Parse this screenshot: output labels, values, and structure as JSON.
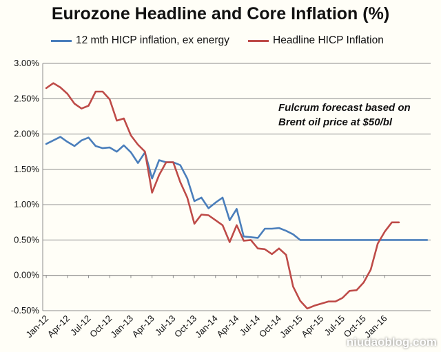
{
  "chart_data": {
    "type": "line",
    "title": "Eurozone Headline and Core Inflation (%)",
    "xlabel": "",
    "ylabel": "",
    "ylim": [
      -0.5,
      3.0
    ],
    "y_ticks": [
      "3.00%",
      "2.50%",
      "2.00%",
      "1.50%",
      "1.00%",
      "0.50%",
      "0.00%",
      "-0.50%"
    ],
    "y_tick_values": [
      3.0,
      2.5,
      2.0,
      1.5,
      1.0,
      0.5,
      0.0,
      -0.5
    ],
    "x_tick_labels": [
      "Jan-12",
      "Apr-12",
      "Jul-12",
      "Oct-12",
      "Jan-13",
      "Apr-13",
      "Jul-13",
      "Oct-13",
      "Jan-14",
      "Apr-14",
      "Jul-14",
      "Oct-14",
      "Jan-15",
      "Apr-15",
      "Jul-15",
      "Oct-15",
      "Jan-16"
    ],
    "x_tick_months": [
      0,
      3,
      6,
      9,
      12,
      15,
      18,
      21,
      24,
      27,
      30,
      33,
      36,
      39,
      42,
      45,
      48
    ],
    "months_count": 55,
    "grid": true,
    "legend_placement": "top",
    "series": [
      {
        "name": "12 mth HICP inflation, ex energy",
        "color": "#4a7ebb",
        "values": [
          1.86,
          1.91,
          1.96,
          1.89,
          1.83,
          1.91,
          1.95,
          1.83,
          1.8,
          1.81,
          1.75,
          1.84,
          1.74,
          1.59,
          1.74,
          1.37,
          1.63,
          1.6,
          1.6,
          1.56,
          1.37,
          1.05,
          1.1,
          0.95,
          1.03,
          1.1,
          0.78,
          0.94,
          0.55,
          0.54,
          0.53,
          0.66,
          0.66,
          0.67,
          0.63,
          0.58,
          0.5,
          0.5,
          0.5,
          0.5,
          0.5,
          0.5,
          0.5,
          0.5,
          0.5,
          0.5,
          0.5,
          0.5,
          0.5,
          0.5,
          0.5,
          0.5,
          0.5,
          0.5,
          0.5
        ]
      },
      {
        "name": "Headline HICP Inflation",
        "color": "#be4b48",
        "values": [
          2.65,
          2.72,
          2.66,
          2.57,
          2.43,
          2.36,
          2.4,
          2.6,
          2.6,
          2.49,
          2.19,
          2.22,
          1.98,
          1.85,
          1.75,
          1.17,
          1.42,
          1.6,
          1.6,
          1.32,
          1.1,
          0.73,
          0.86,
          0.85,
          0.78,
          0.71,
          0.47,
          0.71,
          0.49,
          0.5,
          0.38,
          0.37,
          0.3,
          0.38,
          0.29,
          -0.16,
          -0.36,
          -0.47,
          -0.43,
          -0.4,
          -0.37,
          -0.37,
          -0.32,
          -0.22,
          -0.21,
          -0.1,
          0.08,
          0.45,
          0.62,
          0.75,
          0.75
        ]
      }
    ],
    "annotation": [
      "Fulcrum forecast based on",
      "Brent oil price at $50/bl"
    ]
  },
  "watermark": "niudaoblog.com",
  "colors": {
    "background": "#fffef7",
    "gridline": "#8c8c8c",
    "axis": "#8c8c8c",
    "text": "#111111"
  }
}
